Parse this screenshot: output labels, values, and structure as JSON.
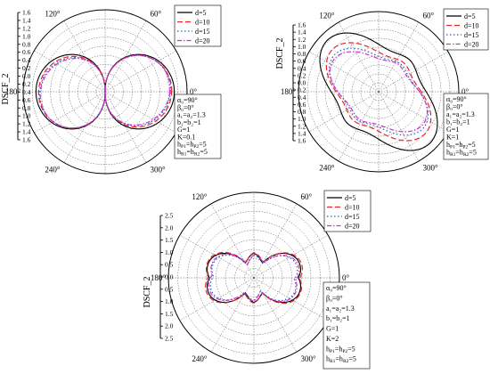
{
  "chart_data": [
    {
      "type": "polar-line",
      "ylabel": "DSCF_2",
      "radial_ticks": [
        "1.6",
        "1.4",
        "1.2",
        "1.0",
        "0.8",
        "0.6",
        "0.4",
        "0.2",
        "0.0",
        "0.2",
        "0.4",
        "0.6",
        "0.8",
        "1.0",
        "1.2",
        "1.4",
        "1.6"
      ],
      "rmax": 1.6,
      "angle_labels": [
        "0°",
        "60°",
        "120°",
        "180°",
        "240°",
        "300°"
      ],
      "legend": [
        "d=5",
        "d=10",
        "d=15",
        "d=20"
      ],
      "params": [
        "α₀=90°",
        "β₀=0°",
        "a₁=a₂=1.3",
        "b₁=b₂=1",
        "G=1",
        "K=0.1",
        "h_P1=h_P2=5",
        "h_R1=h_R2=5"
      ],
      "series": [
        {
          "name": "d=5",
          "color": "#000000",
          "dash": "",
          "shape": "dipole",
          "peak": 1.35
        },
        {
          "name": "d=10",
          "color": "#e8262b",
          "dash": "6,3",
          "shape": "dipole",
          "peak": 1.3
        },
        {
          "name": "d=15",
          "color": "#1f5fc8",
          "dash": "1.5,2.5",
          "shape": "dipole",
          "peak": 1.28
        },
        {
          "name": "d=20",
          "color": "#cc33cc",
          "dash": "5,2,1.5,2",
          "shape": "dipole",
          "peak": 1.27
        }
      ]
    },
    {
      "type": "polar-line",
      "ylabel": "DSCF_2",
      "radial_ticks": [
        "1.6",
        "1.4",
        "1.2",
        "1.0",
        "0.8",
        "0.6",
        "0.4",
        "0.2",
        "0.0",
        "0.2",
        "0.4",
        "0.6",
        "0.8",
        "1.0",
        "1.2",
        "1.4",
        "1.6"
      ],
      "rmax": 1.6,
      "angle_labels": [
        "0°",
        "60°",
        "120°",
        "180°",
        "240°",
        "300°"
      ],
      "legend": [
        "d=5",
        "d=10",
        "d=15",
        "d=20"
      ],
      "params": [
        "α₀=90°",
        "β₀=0°",
        "a₁=a₂=1.3",
        "b₁=b₂=1",
        "G=1",
        "K=1",
        "h_P1=h_P2=5",
        "h_R1=h_R2=5"
      ],
      "series": [
        {
          "name": "d=5",
          "color": "#000000",
          "dash": "",
          "shape": "quad",
          "peak": 1.45
        },
        {
          "name": "d=10",
          "color": "#e8262b",
          "dash": "6,3",
          "shape": "quad",
          "peak": 1.25
        },
        {
          "name": "d=15",
          "color": "#1f5fc8",
          "dash": "1.5,2.5",
          "shape": "quad",
          "peak": 1.15
        },
        {
          "name": "d=20",
          "color": "#cc33cc",
          "dash": "5,2,1.5,2",
          "shape": "quad",
          "peak": 1.1
        }
      ]
    },
    {
      "type": "polar-line",
      "ylabel": "DSCF_2",
      "radial_ticks": [
        "2.5",
        "2.0",
        "1.5",
        "1.0",
        "0.5",
        "0.0",
        "0.5",
        "1.0",
        "1.5",
        "2.0",
        "2.5"
      ],
      "rmax": 2.5,
      "angle_labels": [
        "0°",
        "60°",
        "120°",
        "180°",
        "240°",
        "300°"
      ],
      "legend": [
        "d=5",
        "d=10",
        "d=15",
        "d=20"
      ],
      "params": [
        "α₀=90°",
        "β₀=0°",
        "a₁=a₂=1.3",
        "b₁=b₂=1",
        "G=1",
        "K=2",
        "h_P1=h_P2=5",
        "h_R1=h_R2=5"
      ],
      "series": [
        {
          "name": "d=5",
          "color": "#000000",
          "dash": "",
          "shape": "multi",
          "peak": 1.4
        },
        {
          "name": "d=10",
          "color": "#e8262b",
          "dash": "6,3",
          "shape": "multi",
          "peak": 1.45
        },
        {
          "name": "d=15",
          "color": "#1f5fc8",
          "dash": "1.5,2.5",
          "shape": "multi",
          "peak": 1.3
        },
        {
          "name": "d=20",
          "color": "#cc33cc",
          "dash": "5,2,1.5,2",
          "shape": "multi",
          "peak": 1.35
        }
      ]
    }
  ]
}
